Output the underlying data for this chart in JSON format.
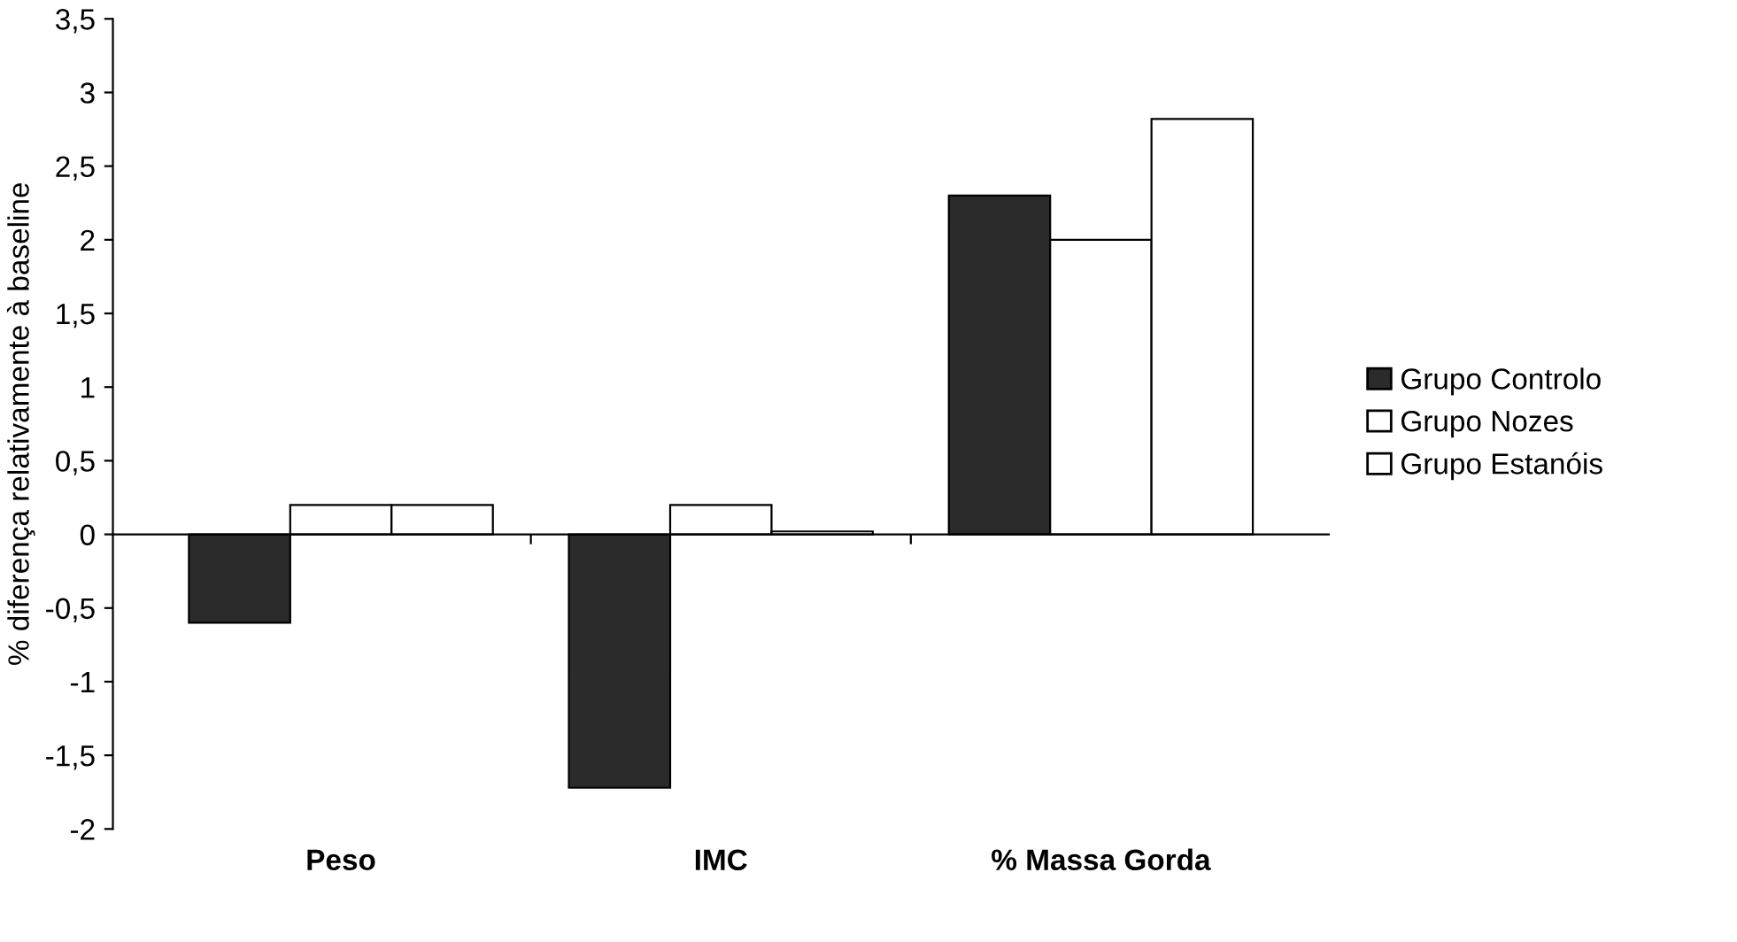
{
  "chart_data": {
    "type": "bar",
    "ylabel": "% diferença relativamente à baseline",
    "categories": [
      "Peso",
      "IMC",
      "% Massa Gorda"
    ],
    "series": [
      {
        "name": "Grupo Controlo",
        "color": "#2b2b2b",
        "values": [
          -0.6,
          -1.72,
          2.3
        ]
      },
      {
        "name": "Grupo Nozes",
        "color": "#ffffff",
        "values": [
          0.2,
          0.2,
          2.0
        ]
      },
      {
        "name": "Grupo Estanóis",
        "color": "#ffffff",
        "values": [
          0.2,
          0.02,
          2.82
        ]
      }
    ],
    "ylim": [
      -2,
      3.5
    ],
    "yticks": [
      {
        "value": -2,
        "label": "-2"
      },
      {
        "value": -1.5,
        "label": "-1,5"
      },
      {
        "value": -1,
        "label": "-1"
      },
      {
        "value": -0.5,
        "label": "-0,5"
      },
      {
        "value": 0,
        "label": "0"
      },
      {
        "value": 0.5,
        "label": "0,5"
      },
      {
        "value": 1,
        "label": "1"
      },
      {
        "value": 1.5,
        "label": "1,5"
      },
      {
        "value": 2,
        "label": "2"
      },
      {
        "value": 2.5,
        "label": "2,5"
      },
      {
        "value": 3,
        "label": "3"
      },
      {
        "value": 3.5,
        "label": "3,5"
      }
    ],
    "legend": "right"
  }
}
